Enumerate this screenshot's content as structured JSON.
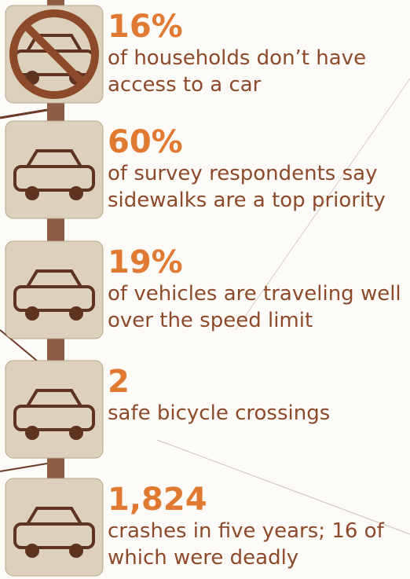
{
  "stats": [
    {
      "value": "16%",
      "text": "of households don’t have access to a car"
    },
    {
      "value": "60%",
      "text": "of survey respondents say sidewalks are a top priority"
    },
    {
      "value": "19%",
      "text": "of vehicles are traveling well over the speed limit"
    },
    {
      "value": "2",
      "text": "safe bicycle crossings"
    },
    {
      "value": "1,824",
      "text": "crashes in five years; 16 of which were deadly"
    }
  ]
}
